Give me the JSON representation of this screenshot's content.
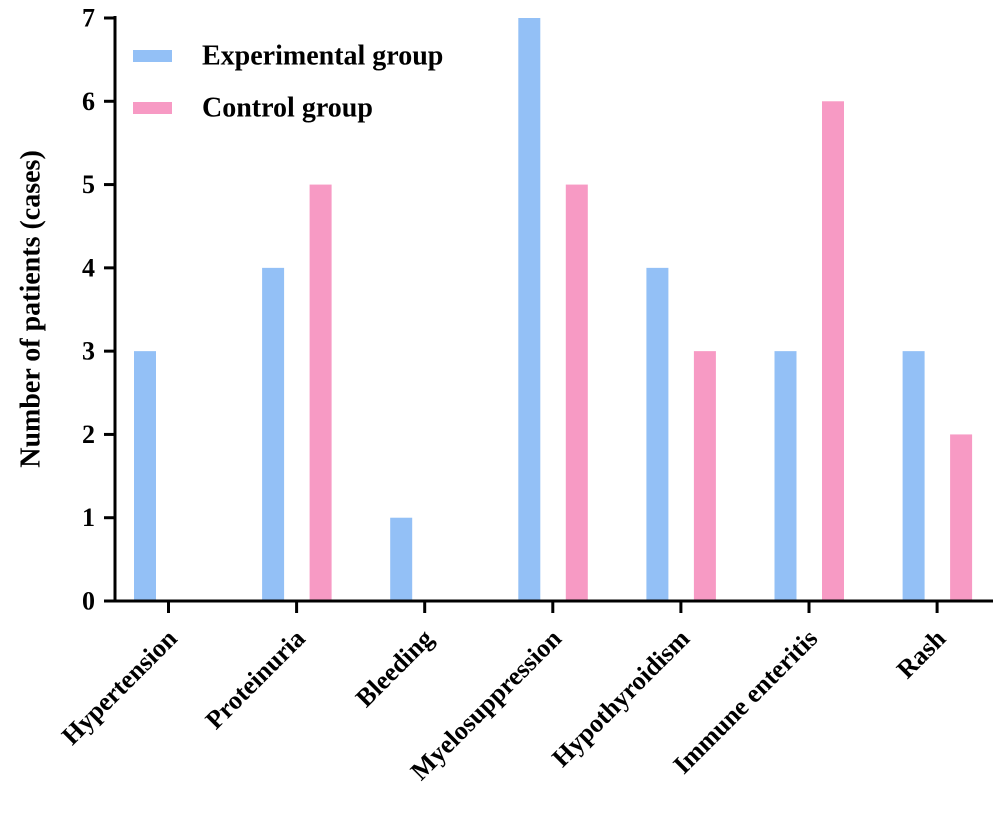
{
  "chart_data": {
    "type": "bar",
    "title": "",
    "xlabel": "",
    "ylabel": "Number of patients (cases)",
    "ylim": [
      0,
      7
    ],
    "yticks": [
      "0",
      "1",
      "2",
      "3",
      "4",
      "5",
      "6",
      "7"
    ],
    "categories": [
      "Hypertension",
      "Proteinuria",
      "Bleeding",
      "Myelosuppression",
      "Hypothyroidism",
      "Immune enteritis",
      "Rash"
    ],
    "series": [
      {
        "name": "Experimental group",
        "color": "#93c0f6",
        "values": [
          3,
          4,
          1,
          7,
          4,
          3,
          3
        ]
      },
      {
        "name": "Control group",
        "color": "#f79ac4",
        "values": [
          0,
          5,
          0,
          5,
          3,
          6,
          2
        ]
      }
    ],
    "legend": "top-left",
    "grid": false
  }
}
